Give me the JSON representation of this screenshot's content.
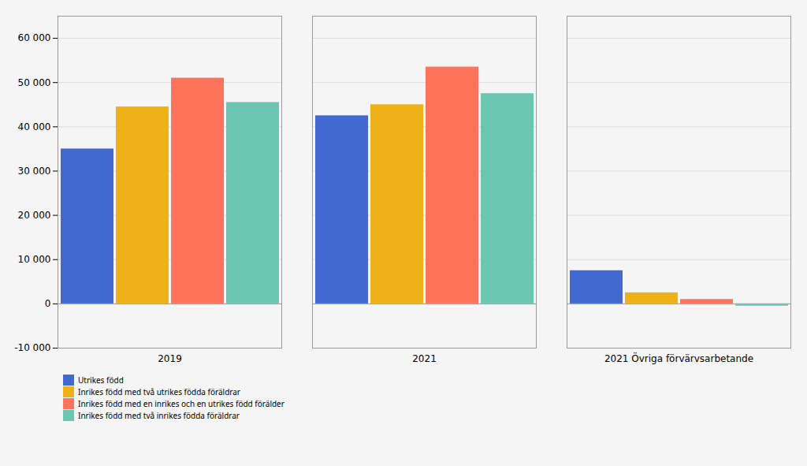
{
  "chart_data": {
    "type": "bar",
    "categories": [
      "2019",
      "2021",
      "2021 Övriga förvärvsarbetande"
    ],
    "series": [
      {
        "name": "Utrikes född",
        "values": [
          35000,
          42500,
          7500
        ]
      },
      {
        "name": "Inrikes född med två utrikes födda föräldrar",
        "values": [
          44500,
          45000,
          2500
        ]
      },
      {
        "name": "Inrikes född med en inrikes och en utrikes född förälder",
        "values": [
          51000,
          53500,
          1000
        ]
      },
      {
        "name": "Inrikes född med två inrikes födda föräldrar",
        "values": [
          45500,
          47500,
          -500
        ]
      }
    ],
    "ylim": [
      -10000,
      65000
    ],
    "yticks": [
      {
        "value": -10000,
        "label": "-10 000"
      },
      0,
      {
        "value": 10000,
        "label": "10 000"
      },
      {
        "value": 20000,
        "label": "20 000"
      },
      {
        "value": 30000,
        "label": "30 000"
      },
      {
        "value": 40000,
        "label": "40 000"
      },
      {
        "value": 50000,
        "label": "50 000"
      },
      {
        "value": 60000,
        "label": "60 000"
      }
    ],
    "grid": true,
    "legend": "bottom"
  }
}
